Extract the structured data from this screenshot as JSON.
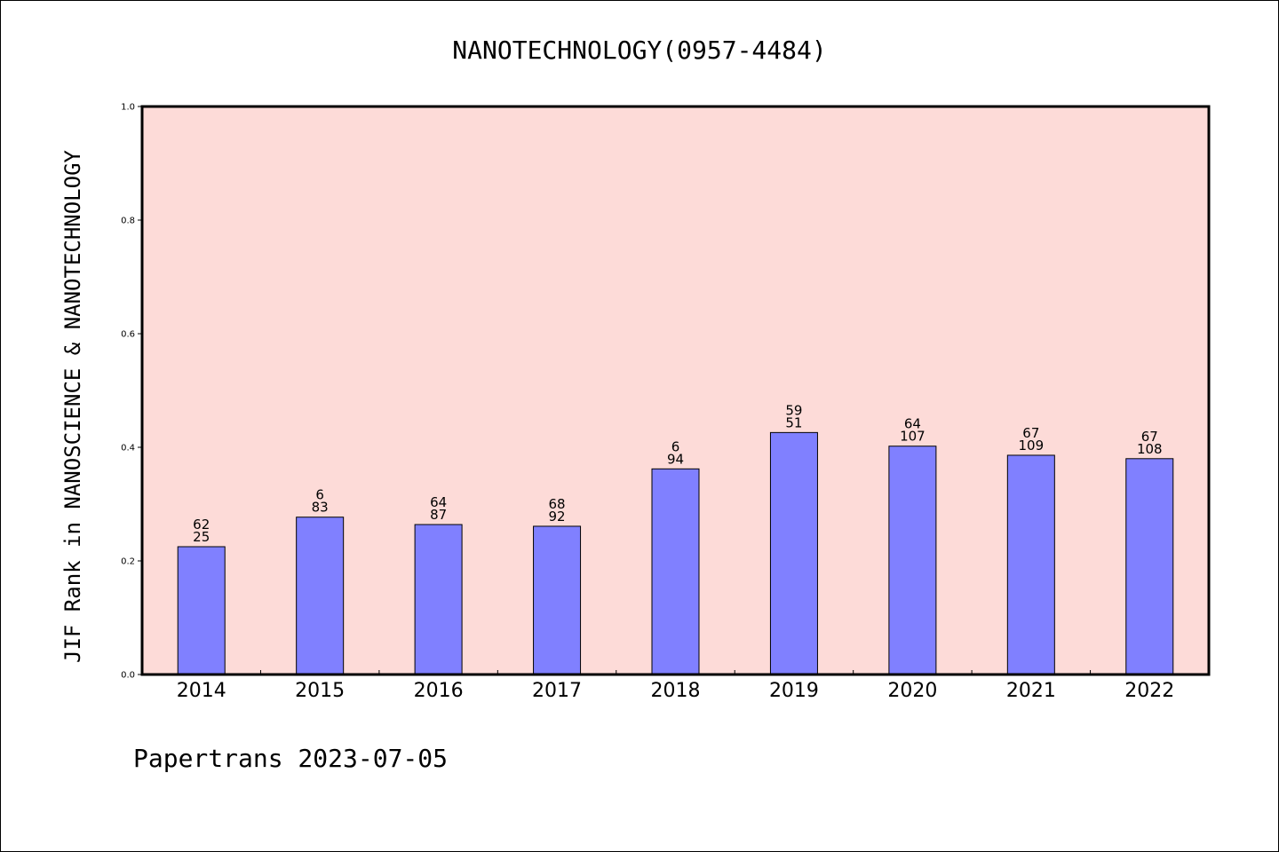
{
  "footer": "Papertrans 2023-07-05",
  "colors": {
    "plot_background": "#fddbd8",
    "bar_fill": "#8080ff",
    "bar_stroke": "#000000",
    "axis": "#000000"
  },
  "chart_data": {
    "type": "bar",
    "title": "NANOTECHNOLOGY(0957-4484)",
    "xlabel": "",
    "ylabel": "JIF Rank in NANOSCIENCE & NANOTECHNOLOGY",
    "ylim": [
      0,
      1.0
    ],
    "yticks": [
      "0.0",
      "0.2",
      "0.4",
      "0.6",
      "0.8",
      "1.0"
    ],
    "grid": false,
    "categories": [
      "2014",
      "2015",
      "2016",
      "2017",
      "2018",
      "2019",
      "2020",
      "2021",
      "2022"
    ],
    "values": [
      0.225,
      0.277,
      0.264,
      0.261,
      0.362,
      0.426,
      0.402,
      0.386,
      0.38
    ],
    "labels": [
      {
        "top": "62",
        "bottom": "25"
      },
      {
        "top": "6",
        "bottom": "83"
      },
      {
        "top": "64",
        "bottom": "87"
      },
      {
        "top": "68",
        "bottom": "92"
      },
      {
        "top": "6",
        "bottom": "94"
      },
      {
        "top": "59",
        "bottom": "51"
      },
      {
        "top": "64",
        "bottom": "107"
      },
      {
        "top": "67",
        "bottom": "109"
      },
      {
        "top": "67",
        "bottom": "108"
      }
    ]
  }
}
